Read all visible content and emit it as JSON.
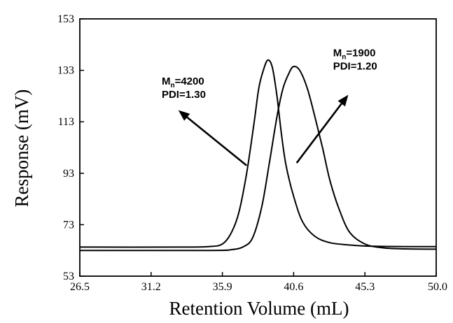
{
  "chart_data": {
    "type": "line",
    "title": "",
    "xlabel": "Retention Volume (mL)",
    "ylabel": "Response (mV)",
    "xlim": [
      26.5,
      50.0
    ],
    "ylim": [
      53,
      153
    ],
    "x_ticks": [
      "26.5",
      "31.2",
      "35.9",
      "40.6",
      "45.3",
      "50.0"
    ],
    "y_ticks": [
      "53",
      "73",
      "93",
      "113",
      "133",
      "153"
    ],
    "grid": false,
    "legend": "none",
    "series": [
      {
        "x": [
          26.5,
          33.0,
          35.0,
          35.9,
          36.5,
          37.0,
          37.5,
          38.0,
          38.3,
          38.6,
          38.9,
          39.2,
          39.5,
          39.8,
          40.1,
          40.6,
          41.2,
          42.0,
          43.0,
          44.5,
          46.0,
          48.0,
          50.0
        ],
        "values": [
          64.3,
          64.3,
          64.5,
          65.5,
          70.0,
          78.0,
          93.0,
          113.0,
          126.0,
          133.0,
          137.0,
          134.0,
          123.0,
          108.0,
          96.0,
          84.0,
          74.0,
          68.5,
          66.0,
          65.0,
          64.6,
          64.5,
          64.5
        ]
      },
      {
        "x": [
          26.5,
          35.0,
          36.5,
          37.3,
          37.9,
          38.5,
          39.0,
          39.5,
          39.9,
          40.3,
          40.6,
          41.0,
          41.5,
          42.0,
          42.5,
          43.0,
          43.6,
          44.3,
          45.3,
          46.5,
          48.0,
          50.0
        ],
        "values": [
          63.0,
          63.0,
          63.3,
          64.5,
          68.0,
          80.0,
          97.0,
          115.0,
          126.0,
          132.0,
          134.5,
          133.0,
          126.0,
          115.0,
          103.0,
          90.0,
          79.0,
          70.0,
          65.5,
          64.0,
          63.6,
          63.5
        ]
      }
    ],
    "annotations": [
      {
        "main": "M",
        "sub": "n",
        "rest": "=4200",
        "line2": "PDI=1.30",
        "text_x": 31.9,
        "text_y": 127.5,
        "arrow_from": [
          37.5,
          96.0
        ],
        "arrow_to": [
          33.0,
          117.5
        ]
      },
      {
        "main": "M",
        "sub": "n",
        "rest": "=1900",
        "line2": "PDI=1.20",
        "text_x": 43.2,
        "text_y": 138.5,
        "arrow_from": [
          40.8,
          97.0
        ],
        "arrow_to": [
          44.2,
          123.5
        ]
      }
    ]
  }
}
